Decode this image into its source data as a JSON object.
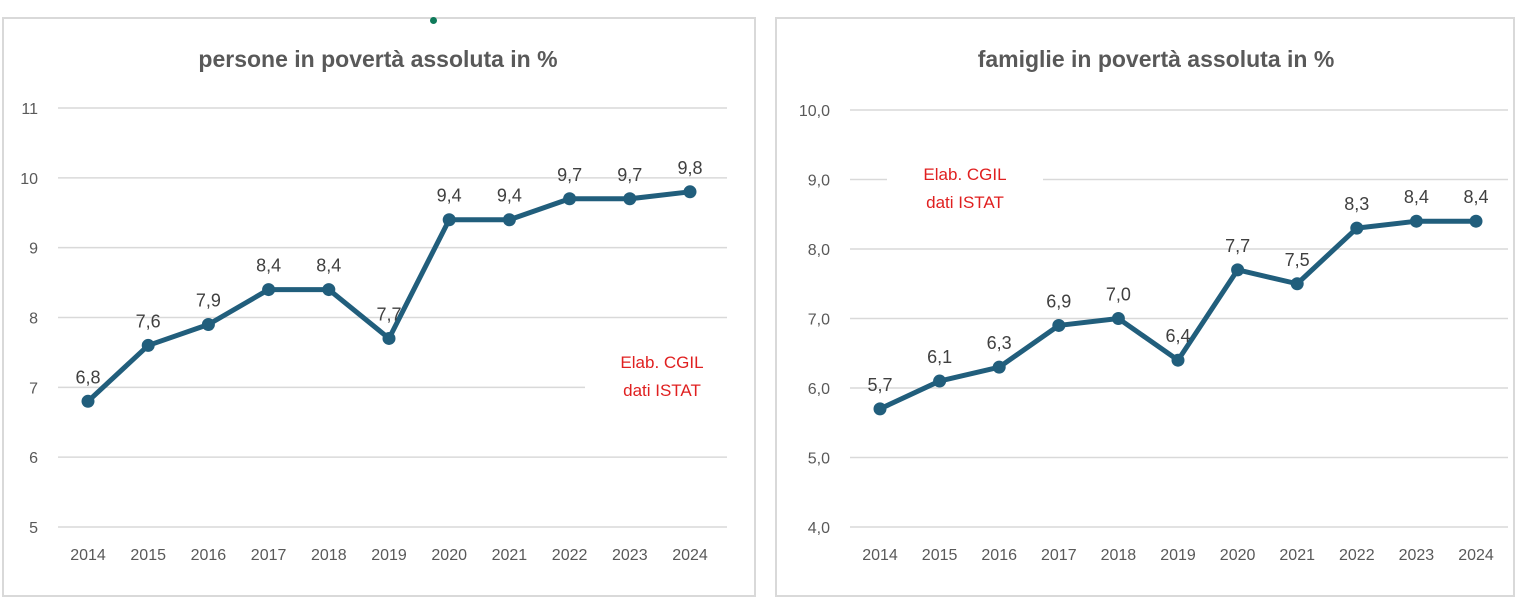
{
  "chart_data": [
    {
      "type": "line",
      "title": "persone in povertà assoluta in %",
      "categories": [
        "2014",
        "2015",
        "2016",
        "2017",
        "2018",
        "2019",
        "2020",
        "2021",
        "2022",
        "2023",
        "2024"
      ],
      "values": [
        6.8,
        7.6,
        7.9,
        8.4,
        8.4,
        7.7,
        9.4,
        9.4,
        9.7,
        9.7,
        9.8
      ],
      "data_labels": [
        "6,8",
        "7,6",
        "7,9",
        "8,4",
        "8,4",
        "7,7",
        "9,4",
        "9,4",
        "9,7",
        "9,7",
        "9,8"
      ],
      "ylim": [
        5,
        11
      ],
      "yticks": [
        "5",
        "6",
        "7",
        "8",
        "9",
        "10",
        "11"
      ],
      "grid": true,
      "annotation": [
        "Elab. CGIL",
        "dati ISTAT"
      ],
      "line_color": "#215e7c",
      "annotation_color": "#e02020"
    },
    {
      "type": "line",
      "title": "famiglie in povertà assoluta in %",
      "categories": [
        "2014",
        "2015",
        "2016",
        "2017",
        "2018",
        "2019",
        "2020",
        "2021",
        "2022",
        "2023",
        "2024"
      ],
      "values": [
        5.7,
        6.1,
        6.3,
        6.9,
        7.0,
        6.4,
        7.7,
        7.5,
        8.3,
        8.4,
        8.4
      ],
      "data_labels": [
        "5,7",
        "6,1",
        "6,3",
        "6,9",
        "7,0",
        "6,4",
        "7,7",
        "7,5",
        "8,3",
        "8,4",
        "8,4"
      ],
      "ylim": [
        4,
        10
      ],
      "yticks": [
        "4,0",
        "5,0",
        "6,0",
        "7,0",
        "8,0",
        "9,0",
        "10,0"
      ],
      "grid": true,
      "annotation": [
        "Elab. CGIL",
        "dati ISTAT"
      ],
      "line_color": "#215e7c",
      "annotation_color": "#e02020"
    }
  ]
}
